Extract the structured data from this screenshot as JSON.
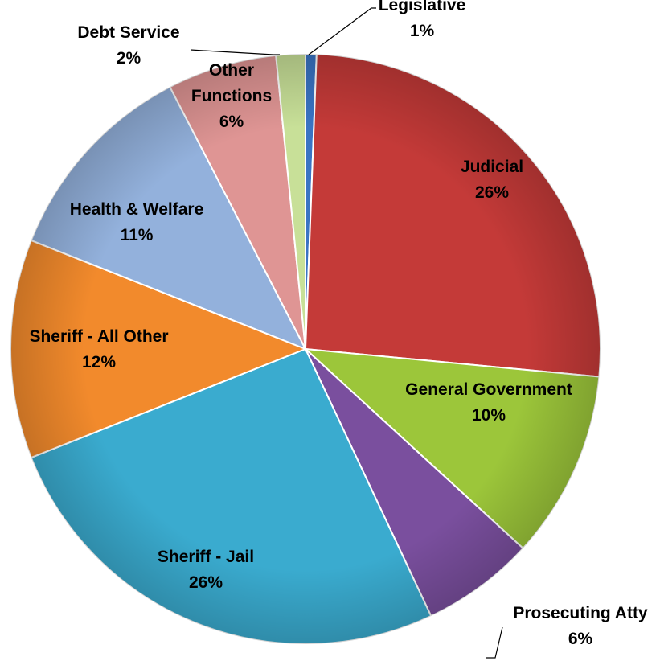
{
  "chart_data": {
    "type": "pie",
    "title": "",
    "slices": [
      {
        "label": "Legislative",
        "pct_label": "1%",
        "value": 0.6,
        "color": "#3a74c4",
        "label_lines": [
          "Legislative"
        ]
      },
      {
        "label": "Judicial",
        "pct_label": "26%",
        "value": 25.9,
        "color": "#c43a38",
        "label_lines": [
          "Judicial"
        ]
      },
      {
        "label": "General Government",
        "pct_label": "10%",
        "value": 10.3,
        "color": "#9cc63a",
        "label_lines": [
          "General Government"
        ]
      },
      {
        "label": "Prosecuting Atty",
        "pct_label": "6%",
        "value": 6.2,
        "color": "#7a4f9e",
        "label_lines": [
          "Prosecuting Atty"
        ]
      },
      {
        "label": "Sheriff - Jail",
        "pct_label": "26%",
        "value": 26.0,
        "color": "#3aabcf",
        "label_lines": [
          "Sheriff - Jail"
        ]
      },
      {
        "label": "Sheriff - All Other",
        "pct_label": "12%",
        "value": 12.0,
        "color": "#f28a2c",
        "label_lines": [
          "Sheriff - All Other"
        ]
      },
      {
        "label": "Health & Welfare",
        "pct_label": "11%",
        "value": 11.4,
        "color": "#93b1dc",
        "label_lines": [
          "Health & Welfare"
        ]
      },
      {
        "label": "Other Functions",
        "pct_label": "6%",
        "value": 6.0,
        "color": "#df9594",
        "label_lines": [
          "Other",
          "Functions"
        ]
      },
      {
        "label": "Debt Service",
        "pct_label": "2%",
        "value": 1.6,
        "color": "#c8e098",
        "label_lines": [
          "Debt Service"
        ]
      }
    ],
    "legend": "none"
  }
}
